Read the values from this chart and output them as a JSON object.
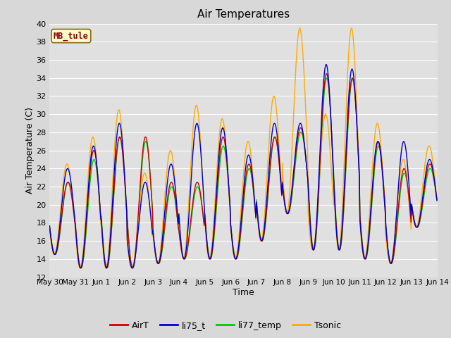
{
  "title": "Air Temperatures",
  "xlabel": "Time",
  "ylabel": "Air Temperature (C)",
  "ylim": [
    12,
    40
  ],
  "yticks": [
    12,
    14,
    16,
    18,
    20,
    22,
    24,
    26,
    28,
    30,
    32,
    34,
    36,
    38,
    40
  ],
  "fig_bg_color": "#d8d8d8",
  "plot_bg": "#e0e0e0",
  "station_label": "MB_tule",
  "station_label_color": "#8b0000",
  "station_box_bg": "#ffffcc",
  "station_box_edge": "#8b6914",
  "colors": {
    "AirT": "#cc0000",
    "li75_t": "#0000cc",
    "li77_temp": "#00cc00",
    "Tsonic": "#ffaa00"
  },
  "linewidth": 1.0,
  "n_days": 15,
  "x_tick_labels": [
    "May 30",
    "May 31",
    "Jun 1",
    "Jun 2",
    "Jun 3",
    "Jun 4",
    "Jun 5",
    "Jun 6",
    "Jun 7",
    "Jun 8",
    "Jun 9",
    "Jun 10",
    "Jun 11",
    "Jun 12",
    "Jun 13",
    "Jun 14"
  ],
  "daily_min": [
    14.5,
    13.0,
    13.0,
    13.0,
    13.5,
    14.0,
    14.0,
    14.0,
    16.0,
    19.0,
    15.0,
    15.0,
    14.0,
    13.5,
    17.5
  ],
  "daily_max_AirT": [
    22.5,
    26.0,
    27.5,
    27.5,
    22.5,
    22.5,
    27.5,
    24.5,
    27.5,
    28.5,
    34.5,
    34.0,
    27.0,
    24.0,
    24.5
  ],
  "daily_max_li75": [
    24.0,
    26.5,
    29.0,
    22.5,
    24.5,
    29.0,
    28.5,
    25.5,
    29.0,
    29.0,
    35.5,
    35.0,
    27.0,
    27.0,
    25.0
  ],
  "daily_max_li77": [
    22.5,
    25.0,
    27.5,
    27.0,
    22.0,
    22.0,
    26.5,
    24.0,
    27.5,
    28.0,
    34.0,
    34.0,
    26.5,
    23.5,
    24.0
  ],
  "daily_max_tsonic": [
    24.5,
    27.5,
    30.5,
    23.5,
    26.0,
    31.0,
    29.5,
    27.0,
    32.0,
    39.5,
    30.0,
    39.5,
    29.0,
    25.0,
    26.5
  ]
}
